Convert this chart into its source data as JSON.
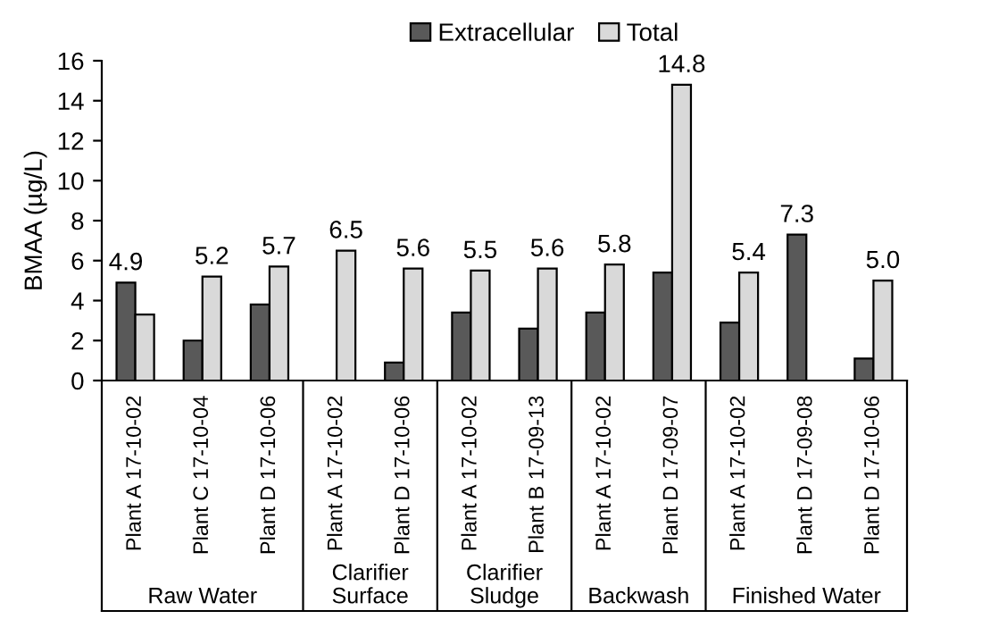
{
  "chart_data": {
    "type": "bar",
    "ylabel": "BMAA (µg/L)",
    "categories": [
      "Plant A 17-10-02",
      "Plant C 17-10-04",
      "Plant D 17-10-06",
      "Plant A 17-10-02",
      "Plant D 17-10-06",
      "Plant A 17-10-02",
      "Plant B 17-09-13",
      "Plant A 17-10-02",
      "Plant D 17-09-07",
      "Plant A 17-10-02",
      "Plant D 17-09-08",
      "Plant D 17-10-06"
    ],
    "series": [
      {
        "name": "Extracellular",
        "color": "#595959",
        "values": [
          4.9,
          2.0,
          3.8,
          null,
          0.9,
          3.4,
          2.6,
          3.4,
          5.4,
          2.9,
          7.3,
          1.1
        ],
        "value_labels": [
          "4.9",
          null,
          null,
          null,
          null,
          null,
          null,
          null,
          null,
          null,
          "7.3",
          null
        ]
      },
      {
        "name": "Total",
        "color": "#d9d9d9",
        "values": [
          3.3,
          5.2,
          5.7,
          6.5,
          5.6,
          5.5,
          5.6,
          5.8,
          14.8,
          5.4,
          null,
          5.0
        ],
        "value_labels": [
          null,
          "5.2",
          "5.7",
          "6.5",
          "5.6",
          "5.5",
          "5.6",
          "5.8",
          "14.8",
          "5.4",
          null,
          "5.0"
        ]
      }
    ],
    "annotations": [
      "Raw Water",
      "Clarifier\nSurface",
      "Clarifier\nSludge",
      "Backwash",
      "Finished Water"
    ],
    "ylim": [
      0,
      16
    ],
    "yticks": [
      0,
      2,
      4,
      6,
      8,
      10,
      12,
      14,
      16
    ],
    "grid": false,
    "legend": "top"
  }
}
